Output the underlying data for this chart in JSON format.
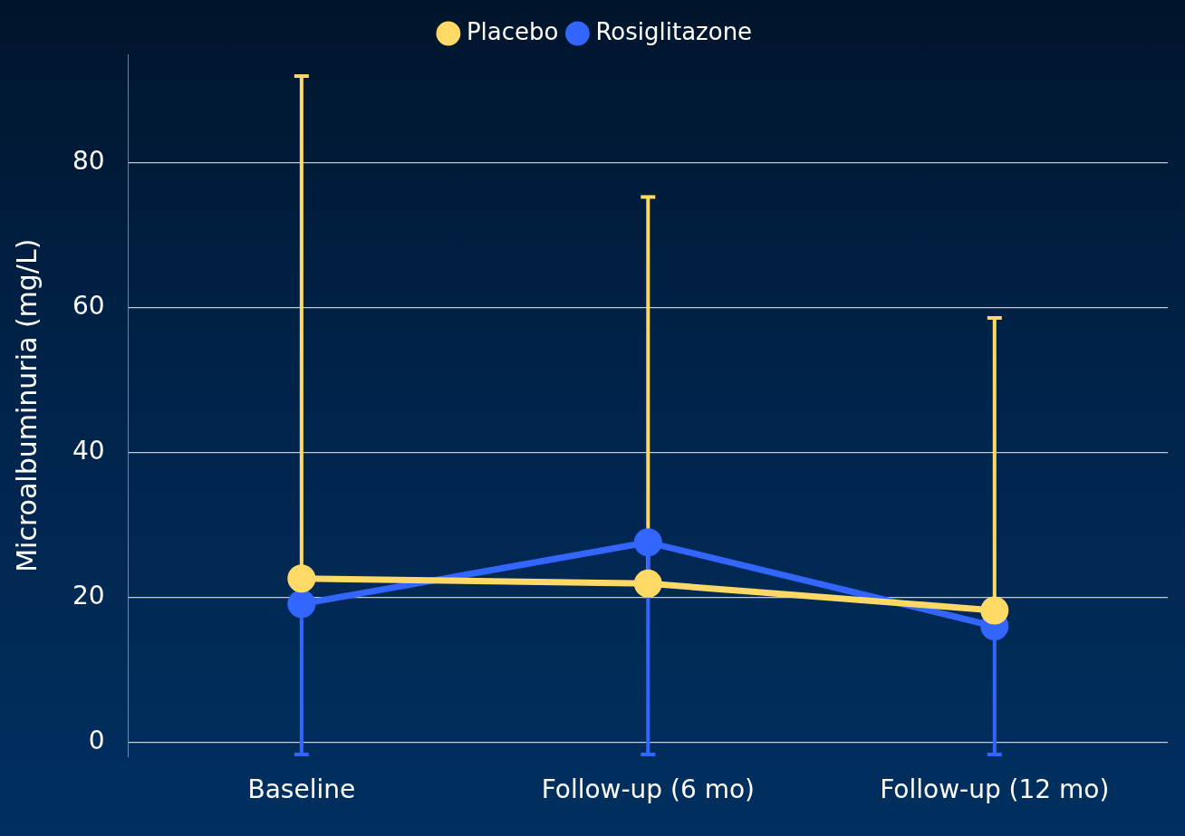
{
  "chart_data": {
    "type": "line",
    "ylabel": "Microalbuminuria (mg/L)",
    "categories": [
      "Baseline",
      "Follow-up (6 mo)",
      "Follow-up (12 mo)"
    ],
    "series": [
      {
        "name": "Placebo",
        "color": "#ffd966",
        "values": [
          22.6,
          21.9,
          18.2
        ],
        "errors": [
          [
            22.6,
            92
          ],
          [
            21.9,
            75.3
          ],
          [
            18.2,
            58.6
          ]
        ]
      },
      {
        "name": "Rosiglitazone",
        "color": "#3366ff",
        "values": [
          19.1,
          27.6,
          16
        ],
        "errors": [
          [
            -1.7,
            19.1
          ],
          [
            -1.7,
            27.6
          ],
          [
            -1.7,
            16
          ]
        ]
      }
    ],
    "ylim": [
      -2,
      95
    ],
    "yticks": [
      0,
      20,
      40,
      60,
      80
    ],
    "grid": "y",
    "legend": "top",
    "marker": "circle",
    "line_style": "solid"
  }
}
